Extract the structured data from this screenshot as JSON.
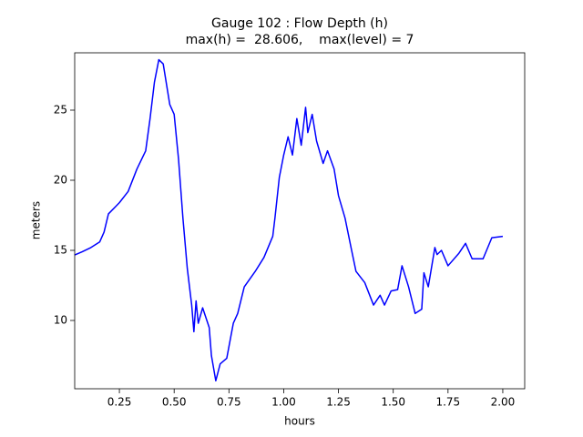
{
  "chart_data": {
    "type": "line",
    "title": [
      "Gauge 102 : Flow Depth (h)",
      "max(h) =  28.606,    max(level) = 7"
    ],
    "xlabel": "hours",
    "ylabel": "meters",
    "color": "#0000ff",
    "grid": false,
    "xlim": [
      0.046,
      2.1
    ],
    "ylim": [
      5.13,
      29.09
    ],
    "xticks": [
      0.25,
      {
        "value": 0.5,
        "label": "0.50"
      },
      0.75,
      {
        "value": 1.0,
        "label": "1.00"
      },
      1.25,
      {
        "value": 1.5,
        "label": "1.50"
      },
      1.75,
      {
        "value": 2.0,
        "label": "2.00"
      }
    ],
    "yticks": [
      10,
      15,
      20,
      25
    ],
    "x": [
      0.046,
      0.08,
      0.12,
      0.16,
      0.18,
      0.2,
      0.25,
      0.29,
      0.33,
      0.37,
      0.39,
      0.41,
      0.43,
      0.45,
      0.48,
      0.5,
      0.52,
      0.54,
      0.56,
      0.58,
      0.59,
      0.6,
      0.61,
      0.63,
      0.66,
      0.67,
      0.69,
      0.71,
      0.74,
      0.77,
      0.79,
      0.82,
      0.87,
      0.91,
      0.95,
      0.96,
      0.98,
      1.0,
      1.02,
      1.04,
      1.06,
      1.08,
      1.1,
      1.11,
      1.13,
      1.15,
      1.18,
      1.2,
      1.23,
      1.25,
      1.28,
      1.31,
      1.33,
      1.37,
      1.41,
      1.44,
      1.46,
      1.49,
      1.52,
      1.54,
      1.57,
      1.6,
      1.63,
      1.64,
      1.66,
      1.69,
      1.7,
      1.72,
      1.75,
      1.8,
      1.83,
      1.86,
      1.91,
      1.95,
      2.0
    ],
    "values": [
      14.67,
      14.9,
      15.2,
      15.6,
      16.3,
      17.6,
      18.4,
      19.2,
      20.8,
      22.1,
      24.4,
      27.0,
      28.6,
      28.3,
      25.4,
      24.7,
      21.5,
      17.3,
      13.7,
      11.1,
      9.2,
      11.4,
      9.8,
      10.9,
      9.5,
      7.5,
      5.7,
      6.9,
      7.3,
      9.8,
      10.5,
      12.4,
      13.5,
      14.5,
      16.0,
      17.3,
      20.2,
      21.8,
      23.1,
      21.8,
      24.4,
      22.5,
      25.2,
      23.4,
      24.7,
      22.8,
      21.2,
      22.1,
      20.8,
      18.9,
      17.3,
      15.0,
      13.5,
      12.7,
      11.1,
      11.8,
      11.1,
      12.1,
      12.2,
      13.9,
      12.4,
      10.5,
      10.8,
      13.4,
      12.4,
      15.2,
      14.7,
      15.0,
      13.9,
      14.8,
      15.5,
      14.4,
      14.4,
      15.9,
      16.0
    ]
  }
}
